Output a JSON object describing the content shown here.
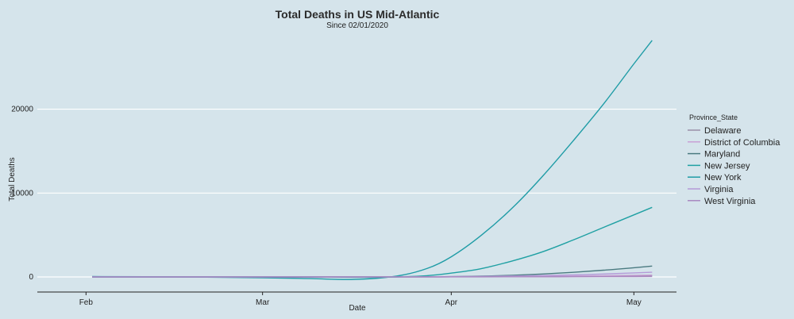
{
  "chart_data": {
    "type": "line",
    "title": "Total Deaths in US Mid-Atlantic",
    "subtitle": "Since 02/01/2020",
    "xlabel": "Date",
    "ylabel": "Total Deaths",
    "x_ticks": [
      {
        "label": "Feb",
        "date": "2020-02-01"
      },
      {
        "label": "Mar",
        "date": "2020-03-01"
      },
      {
        "label": "Apr",
        "date": "2020-04-01"
      },
      {
        "label": "May",
        "date": "2020-05-01"
      }
    ],
    "y_ticks": [
      0,
      10000,
      20000
    ],
    "xlim": [
      "2020-01-24",
      "2020-05-08"
    ],
    "ylim": [
      -1500,
      30000
    ],
    "grid": "horizontal",
    "legend_position": "right",
    "legend_title": "Province_State",
    "x": [
      "2020-02-02",
      "2020-02-16",
      "2020-03-01",
      "2020-03-09",
      "2020-03-16",
      "2020-03-23",
      "2020-03-28",
      "2020-04-01",
      "2020-04-06",
      "2020-04-11",
      "2020-04-16",
      "2020-04-21",
      "2020-04-26",
      "2020-05-01",
      "2020-05-04"
    ],
    "series": [
      {
        "name": "Delaware",
        "color": "#9a8ea8",
        "values": [
          0,
          0,
          0,
          0,
          0,
          5,
          10,
          15,
          25,
          40,
          60,
          80,
          110,
          140,
          160
        ]
      },
      {
        "name": "District of Columbia",
        "color": "#c9a1d5",
        "values": [
          0,
          0,
          0,
          0,
          0,
          5,
          10,
          15,
          30,
          50,
          80,
          110,
          150,
          200,
          230
        ]
      },
      {
        "name": "Maryland",
        "color": "#4a7a80",
        "values": [
          0,
          0,
          0,
          0,
          0,
          10,
          20,
          40,
          100,
          200,
          350,
          550,
          800,
          1100,
          1300
        ]
      },
      {
        "name": "New Jersey",
        "color": "#1fa0a3",
        "values": [
          0,
          0,
          0,
          0,
          -50,
          0,
          150,
          450,
          1000,
          1900,
          3000,
          4400,
          5900,
          7400,
          8300
        ]
      },
      {
        "name": "New York",
        "color": "#1f9ca6",
        "values": [
          50,
          0,
          -100,
          -200,
          -300,
          100,
          1000,
          2400,
          5000,
          8200,
          12000,
          16200,
          20600,
          25400,
          28200
        ]
      },
      {
        "name": "Virginia",
        "color": "#b49ad8",
        "values": [
          0,
          0,
          0,
          0,
          0,
          10,
          20,
          40,
          70,
          110,
          170,
          250,
          350,
          480,
          560
        ]
      },
      {
        "name": "West Virginia",
        "color": "#a888c0",
        "values": [
          0,
          0,
          0,
          0,
          0,
          0,
          2,
          5,
          10,
          15,
          20,
          30,
          40,
          50,
          55
        ]
      }
    ]
  }
}
